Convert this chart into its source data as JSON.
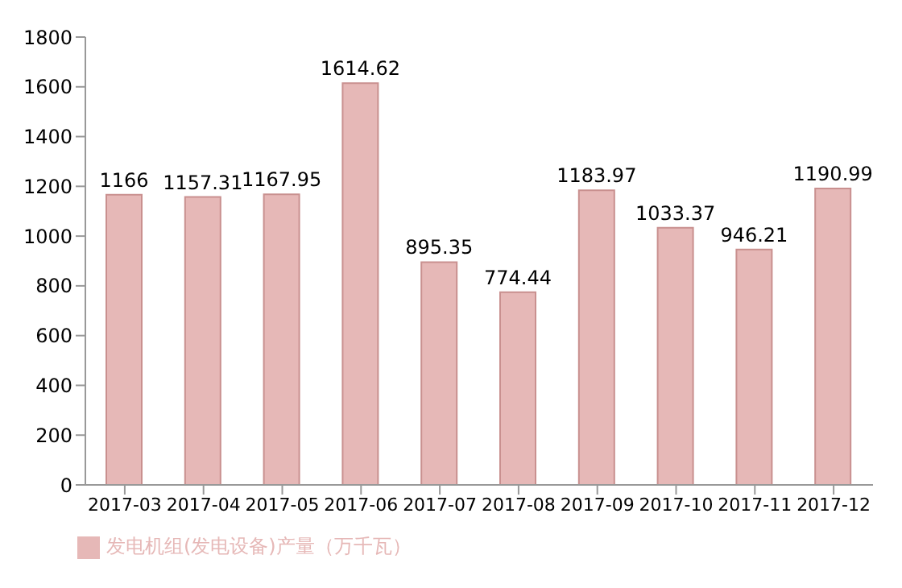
{
  "chart_data": {
    "type": "bar",
    "categories": [
      "2017-03",
      "2017-04",
      "2017-05",
      "2017-06",
      "2017-07",
      "2017-08",
      "2017-09",
      "2017-10",
      "2017-11",
      "2017-12"
    ],
    "series": [
      {
        "name": "发电机组(发电设备)产量（万千瓦）",
        "color": "#e6b8b7",
        "values": [
          1166,
          1157.31,
          1167.95,
          1614.62,
          895.35,
          774.44,
          1183.97,
          1033.37,
          946.21,
          1190.99
        ]
      }
    ],
    "ylim": [
      0,
      1800
    ],
    "yticks": [
      0,
      200,
      400,
      600,
      800,
      1000,
      1200,
      1400,
      1600,
      1800
    ],
    "data_labels": true,
    "legend": "bottom",
    "grid": false
  }
}
